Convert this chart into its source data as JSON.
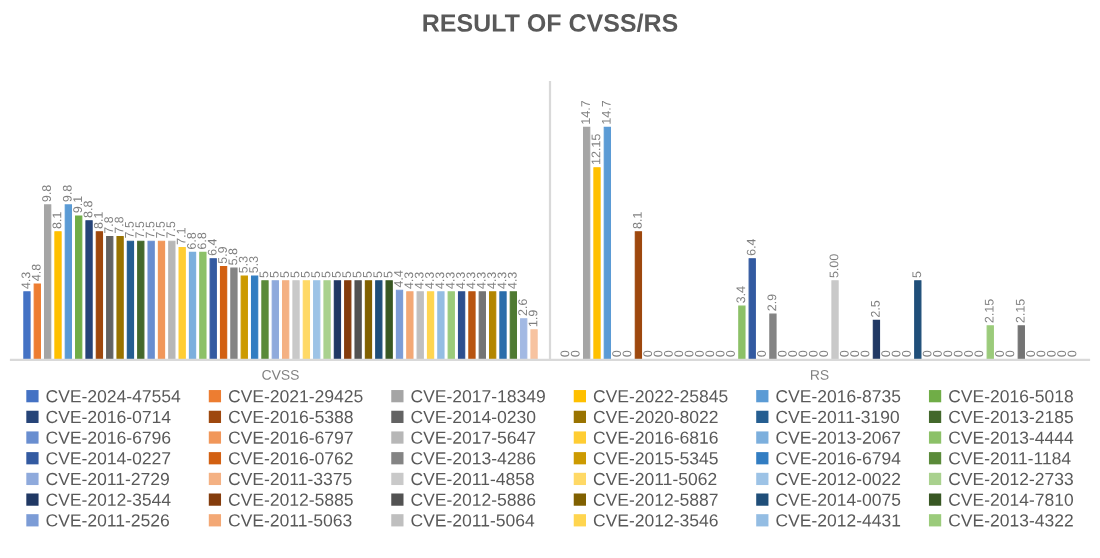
{
  "chart_data": {
    "type": "bar",
    "title": "RESULT OF CVSS/RS",
    "categories": [
      "CVSS",
      "RS"
    ],
    "legend": "bottom",
    "grid": "x",
    "series": [
      {
        "name": "CVE-2024-47554",
        "color": "#4472c4",
        "values": [
          4.3,
          0
        ],
        "value_labels": [
          "4.3",
          "0"
        ]
      },
      {
        "name": "CVE-2021-29425",
        "color": "#ed7d31",
        "values": [
          4.8,
          0
        ],
        "value_labels": [
          "4.8",
          "0"
        ]
      },
      {
        "name": "CVE-2017-18349",
        "color": "#a5a5a5",
        "values": [
          9.8,
          14.7
        ],
        "value_labels": [
          "9.8",
          "14.7"
        ]
      },
      {
        "name": "CVE-2022-25845",
        "color": "#ffc000",
        "values": [
          8.1,
          12.15
        ],
        "value_labels": [
          "8.1",
          "12.15"
        ]
      },
      {
        "name": "CVE-2016-8735",
        "color": "#5b9bd5",
        "values": [
          9.8,
          14.7
        ],
        "value_labels": [
          "9.8",
          "14.7"
        ]
      },
      {
        "name": "CVE-2016-5018",
        "color": "#70ad47",
        "values": [
          9.1,
          0
        ],
        "value_labels": [
          "9.1",
          "0"
        ]
      },
      {
        "name": "CVE-2016-0714",
        "color": "#264478",
        "values": [
          8.8,
          0
        ],
        "value_labels": [
          "8.8",
          "0"
        ]
      },
      {
        "name": "CVE-2016-5388",
        "color": "#9e480e",
        "values": [
          8.1,
          8.1
        ],
        "value_labels": [
          "8.1",
          "8.1"
        ]
      },
      {
        "name": "CVE-2014-0230",
        "color": "#636363",
        "values": [
          7.8,
          0
        ],
        "value_labels": [
          "7.8",
          "0"
        ]
      },
      {
        "name": "CVE-2020-8022",
        "color": "#997300",
        "values": [
          7.8,
          0
        ],
        "value_labels": [
          "7.8",
          "0"
        ]
      },
      {
        "name": "CVE-2011-3190",
        "color": "#255e91",
        "values": [
          7.5,
          0
        ],
        "value_labels": [
          "7.5",
          "0"
        ]
      },
      {
        "name": "CVE-2013-2185",
        "color": "#43682b",
        "values": [
          7.5,
          0
        ],
        "value_labels": [
          "7.5",
          "0"
        ]
      },
      {
        "name": "CVE-2016-6796",
        "color": "#698ed0",
        "values": [
          7.5,
          0
        ],
        "value_labels": [
          "7.5",
          "0"
        ]
      },
      {
        "name": "CVE-2016-6797",
        "color": "#f1975a",
        "values": [
          7.5,
          0
        ],
        "value_labels": [
          "7.5",
          "0"
        ]
      },
      {
        "name": "CVE-2017-5647",
        "color": "#b7b7b7",
        "values": [
          7.5,
          0
        ],
        "value_labels": [
          "7.5",
          "0"
        ]
      },
      {
        "name": "CVE-2016-6816",
        "color": "#ffcd33",
        "values": [
          7.1,
          0
        ],
        "value_labels": [
          "7.1",
          "0"
        ]
      },
      {
        "name": "CVE-2013-2067",
        "color": "#7cafdd",
        "values": [
          6.8,
          0
        ],
        "value_labels": [
          "6.8",
          "0"
        ]
      },
      {
        "name": "CVE-2013-4444",
        "color": "#8cc168",
        "values": [
          6.8,
          3.4
        ],
        "value_labels": [
          "6.8",
          "3.4"
        ]
      },
      {
        "name": "CVE-2014-0227",
        "color": "#335aa1",
        "values": [
          6.4,
          6.4
        ],
        "value_labels": [
          "6.4",
          "6.4"
        ]
      },
      {
        "name": "CVE-2016-0762",
        "color": "#d26012",
        "values": [
          5.9,
          0
        ],
        "value_labels": [
          "5.9",
          "0"
        ]
      },
      {
        "name": "CVE-2013-4286",
        "color": "#848484",
        "values": [
          5.8,
          2.9
        ],
        "value_labels": [
          "5.8",
          "2.9"
        ]
      },
      {
        "name": "CVE-2015-5345",
        "color": "#cc9a00",
        "values": [
          5.3,
          0
        ],
        "value_labels": [
          "5.3",
          "0"
        ]
      },
      {
        "name": "CVE-2016-6794",
        "color": "#327dc2",
        "values": [
          5.3,
          0
        ],
        "value_labels": [
          "5.3",
          "0"
        ]
      },
      {
        "name": "CVE-2011-1184",
        "color": "#5a8a39",
        "values": [
          5,
          0
        ],
        "value_labels": [
          "5",
          "0"
        ]
      },
      {
        "name": "CVE-2011-2729",
        "color": "#8faadc",
        "values": [
          5,
          0
        ],
        "value_labels": [
          "5",
          "0"
        ]
      },
      {
        "name": "CVE-2011-3375",
        "color": "#f4b183",
        "values": [
          5,
          0
        ],
        "value_labels": [
          "5",
          "0"
        ]
      },
      {
        "name": "CVE-2011-4858",
        "color": "#c9c9c9",
        "values": [
          5,
          5.0
        ],
        "value_labels": [
          "5",
          "5.00"
        ]
      },
      {
        "name": "CVE-2011-5062",
        "color": "#ffd966",
        "values": [
          5,
          0
        ],
        "value_labels": [
          "5",
          "0"
        ]
      },
      {
        "name": "CVE-2012-0022",
        "color": "#9dc3e6",
        "values": [
          5,
          0
        ],
        "value_labels": [
          "5",
          "0"
        ]
      },
      {
        "name": "CVE-2012-2733",
        "color": "#a9d18e",
        "values": [
          5,
          0
        ],
        "value_labels": [
          "5",
          "0"
        ]
      },
      {
        "name": "CVE-2012-3544",
        "color": "#203864",
        "values": [
          5,
          2.5
        ],
        "value_labels": [
          "5",
          "2.5"
        ]
      },
      {
        "name": "CVE-2012-5885",
        "color": "#843c0c",
        "values": [
          5,
          0
        ],
        "value_labels": [
          "5",
          "0"
        ]
      },
      {
        "name": "CVE-2012-5886",
        "color": "#525252",
        "values": [
          5,
          0
        ],
        "value_labels": [
          "5",
          "0"
        ]
      },
      {
        "name": "CVE-2012-5887",
        "color": "#806000",
        "values": [
          5,
          0
        ],
        "value_labels": [
          "5",
          "0"
        ]
      },
      {
        "name": "CVE-2014-0075",
        "color": "#1f4e79",
        "values": [
          5,
          5
        ],
        "value_labels": [
          "5",
          "5"
        ]
      },
      {
        "name": "CVE-2014-7810",
        "color": "#385723",
        "values": [
          5,
          0
        ],
        "value_labels": [
          "5",
          "0"
        ]
      },
      {
        "name": "CVE-2011-2526",
        "color": "#7c9cd6",
        "values": [
          4.4,
          0
        ],
        "value_labels": [
          "4.4",
          "0"
        ]
      },
      {
        "name": "CVE-2011-5063",
        "color": "#f3a875",
        "values": [
          4.3,
          0
        ],
        "value_labels": [
          "4.3",
          "0"
        ]
      },
      {
        "name": "CVE-2011-5064",
        "color": "#bfbfbf",
        "values": [
          4.3,
          0
        ],
        "value_labels": [
          "4.3",
          "0"
        ]
      },
      {
        "name": "CVE-2012-3546",
        "color": "#ffd54f",
        "values": [
          4.3,
          0
        ],
        "value_labels": [
          "4.3",
          "0"
        ]
      },
      {
        "name": "CVE-2012-4431",
        "color": "#94bde3",
        "values": [
          4.3,
          0
        ],
        "value_labels": [
          "4.3",
          "0"
        ]
      },
      {
        "name": "CVE-2013-4322",
        "color": "#9bcb7b",
        "values": [
          4.3,
          2.15
        ],
        "value_labels": [
          "4.3",
          "2.15"
        ]
      },
      {
        "color": "#2c4f8f",
        "values": [
          4.3,
          0
        ],
        "value_labels": [
          "4.3",
          "0"
        ]
      },
      {
        "color": "#b85410",
        "values": [
          4.3,
          0
        ],
        "value_labels": [
          "4.3",
          "0"
        ]
      },
      {
        "color": "#747474",
        "values": [
          4.3,
          2.15
        ],
        "value_labels": [
          "4.3",
          "2.15"
        ]
      },
      {
        "color": "#b38600",
        "values": [
          4.3,
          0
        ],
        "value_labels": [
          "4.3",
          "0"
        ]
      },
      {
        "color": "#2b6daa",
        "values": [
          4.3,
          0
        ],
        "value_labels": [
          "4.3",
          "0"
        ]
      },
      {
        "color": "#4f7a32",
        "values": [
          4.3,
          0
        ],
        "value_labels": [
          "4.3",
          "0"
        ]
      },
      {
        "color": "#a2b9e3",
        "values": [
          2.6,
          0
        ],
        "value_labels": [
          "2.6",
          "0"
        ]
      },
      {
        "color": "#f7c3a0",
        "values": [
          1.9,
          0
        ],
        "value_labels": [
          "1.9",
          "0"
        ]
      }
    ]
  }
}
